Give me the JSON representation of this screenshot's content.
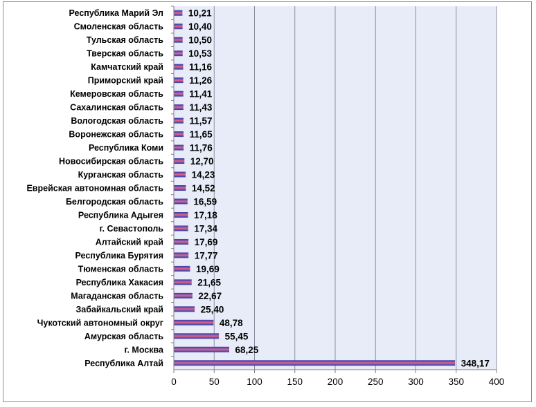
{
  "chart_data": {
    "type": "bar",
    "orientation": "horizontal",
    "title": "",
    "xlabel": "",
    "ylabel": "",
    "xlim": [
      0,
      400
    ],
    "x_ticks": [
      0,
      50,
      100,
      150,
      200,
      250,
      300,
      350,
      400
    ],
    "grid": true,
    "legend": "none",
    "colors": {
      "plot_background": "#e8ecf8",
      "gridline": "#8a8fa0",
      "bar_top": "#3f3fa8",
      "bar_middle": "#ee6080",
      "bar_bottom": "#3a3aa0"
    },
    "categories": [
      "Республика Марий Эл",
      "Смоленская область",
      "Тульская область",
      "Тверская область",
      "Камчатский край",
      "Приморский край",
      "Кемеровская область",
      "Сахалинская область",
      "Вологодская область",
      "Воронежская область",
      "Республика Коми",
      "Новосибирская область",
      "Курганская область",
      "Еврейская автономная область",
      "Белгородская область",
      "Республика Адыгея",
      "г. Севастополь",
      "Алтайский край",
      "Республика Бурятия",
      "Тюменская область",
      "Республика Хакасия",
      "Магаданская область",
      "Забайкальский край",
      "Чукотский автономный округ",
      "Амурская область",
      "г. Москва",
      "Республика Алтай"
    ],
    "values": [
      10.21,
      10.4,
      10.5,
      10.53,
      11.16,
      11.26,
      11.41,
      11.43,
      11.57,
      11.65,
      11.76,
      12.7,
      14.23,
      14.52,
      16.59,
      17.18,
      17.34,
      17.69,
      17.77,
      19.69,
      21.65,
      22.67,
      25.4,
      48.78,
      55.45,
      68.25,
      348.17
    ],
    "value_labels": [
      "10,21",
      "10,40",
      "10,50",
      "10,53",
      "11,16",
      "11,26",
      "11,41",
      "11,43",
      "11,57",
      "11,65",
      "11,76",
      "12,70",
      "14,23",
      "14,52",
      "16,59",
      "17,18",
      "17,34",
      "17,69",
      "17,77",
      "19,69",
      "21,65",
      "22,67",
      "25,40",
      "48,78",
      "55,45",
      "68,25",
      "348,17"
    ]
  }
}
